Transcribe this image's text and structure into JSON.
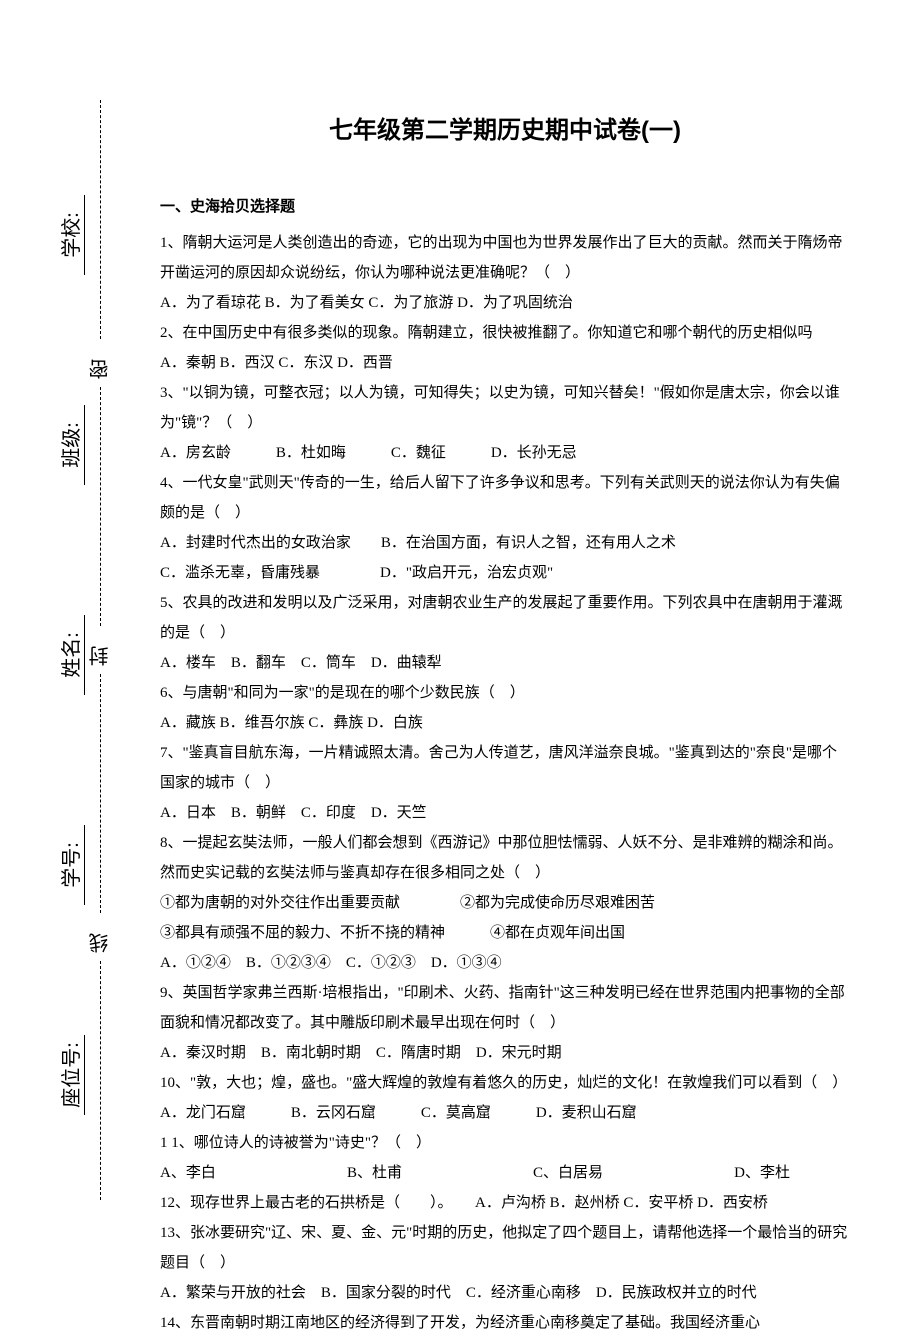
{
  "sidebar": {
    "fields": [
      {
        "label": "学校:"
      },
      {
        "label": "班级:"
      },
      {
        "label": "姓名:"
      },
      {
        "label": "学号:"
      },
      {
        "label": "座位号:"
      }
    ],
    "seal_chars": [
      "密",
      "封",
      "线"
    ]
  },
  "document": {
    "title": "七年级第二学期历史期中试卷(一)",
    "section_heading": "一、史海拾贝选择题",
    "questions": [
      {
        "text": "1、隋朝大运河是人类创造出的奇迹，它的出现为中国也为世界发展作出了巨大的贡献。然而关于隋炀帝开凿运河的原因却众说纷纭，你认为哪种说法更准确呢？（　）",
        "options": "A．为了看琼花 B．为了看美女 C．为了旅游 D．为了巩固统治"
      },
      {
        "text": "2、在中国历史中有很多类似的现象。隋朝建立，很快被推翻了。你知道它和哪个朝代的历史相似吗",
        "options": "A．秦朝 B．西汉 C．东汉 D．西晋"
      },
      {
        "text": "3、\"以铜为镜，可整衣冠；以人为镜，可知得失；以史为镜，可知兴替矣！\"假如你是唐太宗，你会以谁为\"镜\"？（　）",
        "options": "A．房玄龄　　　B．杜如晦　　　C．魏征　　　D．长孙无忌"
      },
      {
        "text": "4、一代女皇\"武则天\"传奇的一生，给后人留下了许多争议和思考。下列有关武则天的说法你认为有失偏颇的是（　）",
        "options": "A．封建时代杰出的女政治家　　B．在治国方面，有识人之智，还有用人之术\nC．滥杀无辜，昏庸残暴　　　　D．\"政启开元，治宏贞观\""
      },
      {
        "text": "5、农具的改进和发明以及广泛采用，对唐朝农业生产的发展起了重要作用。下列农具中在唐朝用于灌溉的是（　）",
        "options": "A．楼车　B．翻车　C．筒车　D．曲辕犁"
      },
      {
        "text": "6、与唐朝\"和同为一家\"的是现在的哪个少数民族（　）",
        "options": "A．藏族 B．维吾尔族 C．彝族 D．白族"
      },
      {
        "text": "7、\"鉴真盲目航东海，一片精诚照太清。舍己为人传道艺，唐风洋溢奈良城。\"鉴真到达的\"奈良\"是哪个国家的城市（　）",
        "options": "A．日本　B．朝鲜　C．印度　D．天竺"
      },
      {
        "text": "8、一提起玄奘法师，一般人们都会想到《西游记》中那位胆怯懦弱、人妖不分、是非难辨的糊涂和尚。然而史实记载的玄奘法师与鉴真却存在很多相同之处（　）",
        "options": "①都为唐朝的对外交往作出重要贡献　　　　②都为完成使命历尽艰难困苦\n③都具有顽强不屈的毅力、不折不挠的精神　　　④都在贞观年间出国\nA．①②④　B．①②③④　C．①②③　D．①③④"
      },
      {
        "text": "9、英国哲学家弗兰西斯·培根指出，\"印刷术、火药、指南针\"这三种发明已经在世界范围内把事物的全部面貌和情况都改变了。其中雕版印刷术最早出现在何时（　）",
        "options": "A．秦汉时期　B．南北朝时期　C．隋唐时期　D．宋元时期"
      },
      {
        "text": "10、\"敦，大也；煌，盛也。\"盛大辉煌的敦煌有着悠久的历史，灿烂的文化！在敦煌我们可以看到（　）",
        "options": "A．龙门石窟　　　B．云冈石窟　　　C．莫高窟　　　D．麦积山石窟"
      },
      {
        "text": "1 1、哪位诗人的诗被誉为\"诗史\"？（　）",
        "options_wide": [
          "A、李白",
          "B、杜甫",
          "C、白居易",
          "D、李杜"
        ]
      },
      {
        "text": "12、现存世界上最古老的石拱桥是（　　）。　　A．卢沟桥 B．赵州桥 C．安平桥 D．西安桥",
        "options": ""
      },
      {
        "text": "13、张冰要研究\"辽、宋、夏、金、元\"时期的历史，他拟定了四个题目上，请帮他选择一个最恰当的研究题目（　）",
        "options": "A．繁荣与开放的社会　B．国家分裂的时代　C．经济重心南移　D．民族政权并立的时代"
      },
      {
        "text": "14、东晋南朝时期江南地区的经济得到了开发，为经济重心南移奠定了基础。我国经济重心",
        "options": ""
      }
    ]
  }
}
